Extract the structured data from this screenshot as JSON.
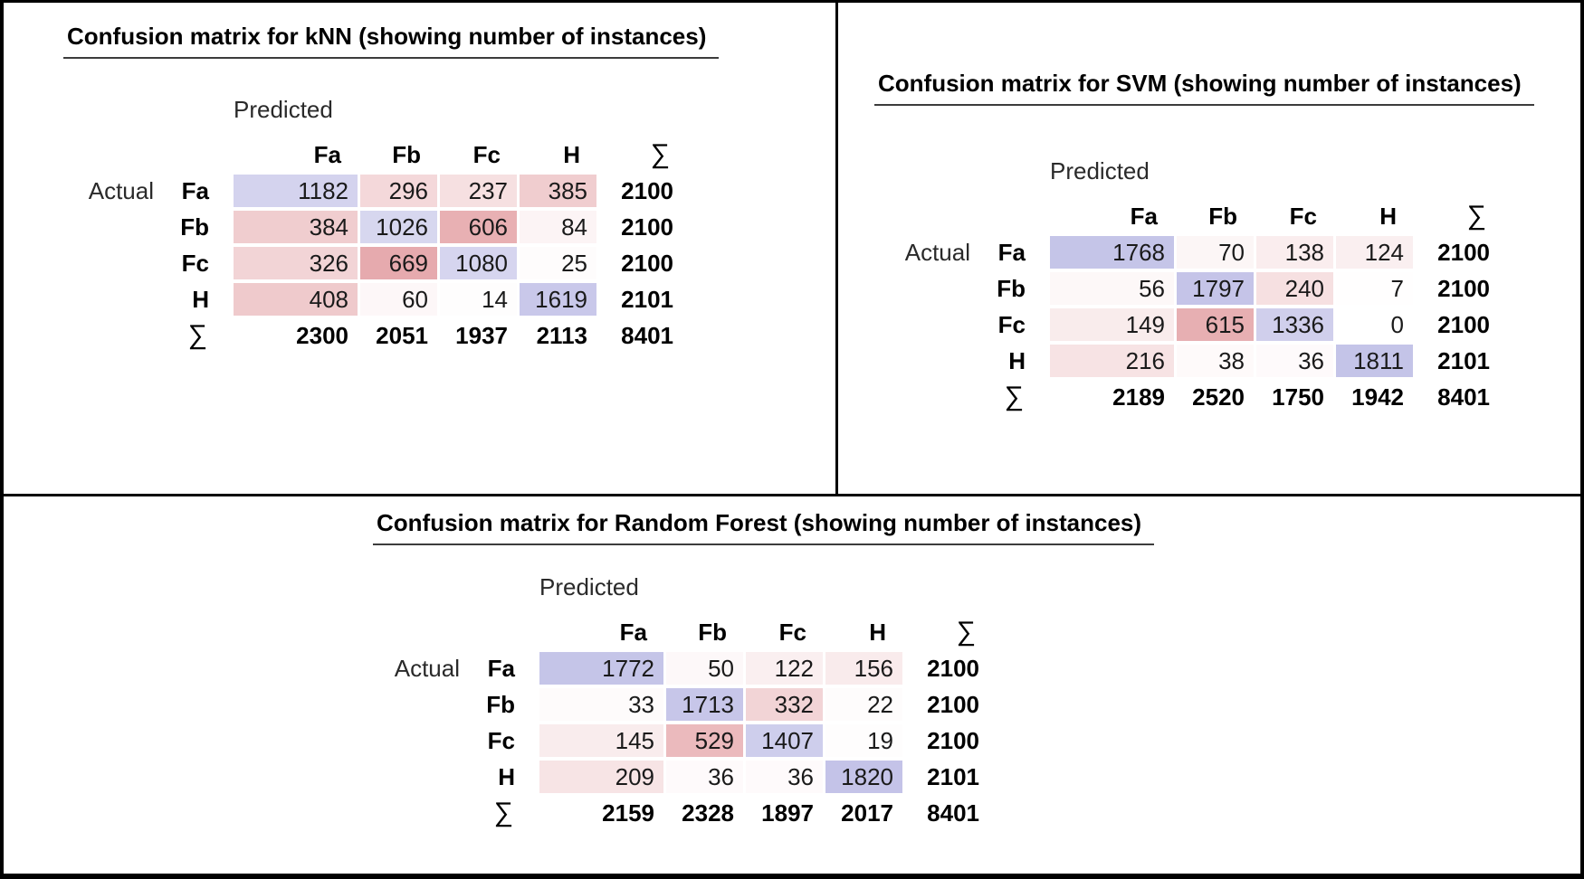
{
  "shared": {
    "predicted_label": "Predicted",
    "actual_label": "Actual",
    "sum_symbol": "∑"
  },
  "colors": {
    "frame_border": "#000000",
    "title_underline": "#3c3c3c",
    "diagonal_base": "#6a68c4",
    "error_base": "#e6aaae",
    "text": "#1a1a1a"
  },
  "chart_data": [
    {
      "type": "heatmap",
      "title": "Confusion matrix for kNN (showing number of instances)",
      "xlabel": "Predicted",
      "ylabel": "Actual",
      "x_labels": [
        "Fa",
        "Fb",
        "Fc",
        "H"
      ],
      "y_labels": [
        "Fa",
        "Fb",
        "Fc",
        "H"
      ],
      "values": [
        [
          1182,
          296,
          237,
          385
        ],
        [
          384,
          1026,
          606,
          84
        ],
        [
          326,
          669,
          1080,
          25
        ],
        [
          408,
          60,
          14,
          1619
        ]
      ],
      "row_totals": [
        2100,
        2100,
        2100,
        2101
      ],
      "col_totals": [
        2300,
        2051,
        1937,
        2113
      ],
      "grand_total": 8401
    },
    {
      "type": "heatmap",
      "title": "Confusion matrix for SVM (showing number of instances)",
      "xlabel": "Predicted",
      "ylabel": "Actual",
      "x_labels": [
        "Fa",
        "Fb",
        "Fc",
        "H"
      ],
      "y_labels": [
        "Fa",
        "Fb",
        "Fc",
        "H"
      ],
      "values": [
        [
          1768,
          70,
          138,
          124
        ],
        [
          56,
          1797,
          240,
          7
        ],
        [
          149,
          615,
          1336,
          0
        ],
        [
          216,
          38,
          36,
          1811
        ]
      ],
      "row_totals": [
        2100,
        2100,
        2100,
        2101
      ],
      "col_totals": [
        2189,
        2520,
        1750,
        1942
      ],
      "grand_total": 8401
    },
    {
      "type": "heatmap",
      "title": "Confusion matrix for Random Forest (showing number of instances)",
      "xlabel": "Predicted",
      "ylabel": "Actual",
      "x_labels": [
        "Fa",
        "Fb",
        "Fc",
        "H"
      ],
      "y_labels": [
        "Fa",
        "Fb",
        "Fc",
        "H"
      ],
      "values": [
        [
          1772,
          50,
          122,
          156
        ],
        [
          33,
          1713,
          332,
          22
        ],
        [
          145,
          529,
          1407,
          19
        ],
        [
          209,
          36,
          36,
          1820
        ]
      ],
      "row_totals": [
        2100,
        2100,
        2100,
        2101
      ],
      "col_totals": [
        2159,
        2328,
        1897,
        2017
      ],
      "grand_total": 8401
    }
  ]
}
